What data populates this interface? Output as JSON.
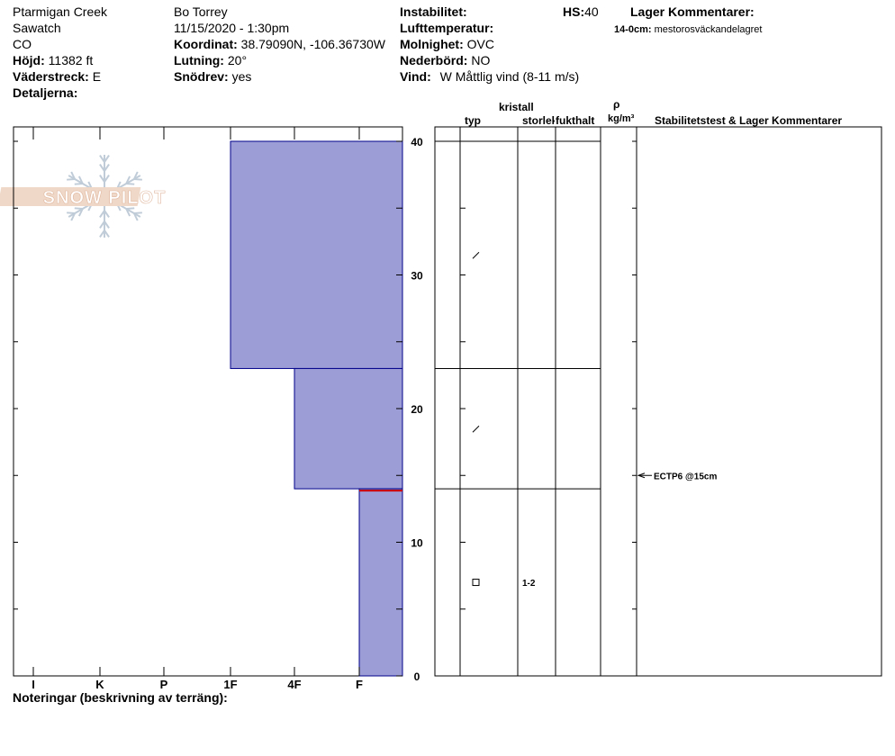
{
  "header": {
    "location": "Ptarmigan Creek",
    "range": "Sawatch",
    "state": "CO",
    "elevation_label": "Höjd:",
    "elevation_value": "11382 ft",
    "aspect_label": "Väderstreck:",
    "aspect_value": "E",
    "details_label": "Detaljerna:",
    "observer": "Bo Torrey",
    "datetime": "11/15/2020 - 1:30pm",
    "coord_label": "Koordinat:",
    "coord_value": "38.79090N, -106.36730W",
    "slope_label": "Lutning:",
    "slope_value": "20°",
    "drift_label": "Snödrev:",
    "drift_value": "yes",
    "instability_label": "Instabilitet:",
    "airtemp_label": "Lufttemperatur:",
    "cloud_label": "Molnighet:",
    "cloud_value": "OVC",
    "precip_label": "Nederbörd:",
    "precip_value": "NO",
    "wind_label": "Vind:",
    "wind_value": "W Måttlig vind (8-11 m/s)",
    "hs_label": "HS:",
    "hs_value": "40",
    "layer_comments_label": "Lager Kommentarer:",
    "layer_comment_depth": "14-0cm:",
    "layer_comment_text": "mestorosväckandelagret"
  },
  "columns": {
    "crystal": "kristall",
    "type": "typ",
    "size": "storlek",
    "moisture": "fukthalt",
    "rho": "ρ",
    "density_unit": "kg/m³",
    "stability": "Stabilitetstest & Lager Kommentarer"
  },
  "footer": {
    "notes_label": "Noteringar (beskrivning av terräng):"
  },
  "logo": {
    "text": "SNOW PILOT"
  },
  "colors": {
    "layer_fill": "#9c9cd6",
    "layer_stroke": "#00008b",
    "weak_layer": "#cc0000",
    "logo_band": "#f0d8c8",
    "logo_flake": "#c0ccd8"
  },
  "chart_data": {
    "type": "bar",
    "orientation": "horizontal-step",
    "hardness_scale": [
      "I",
      "K",
      "P",
      "1F",
      "4F",
      "F"
    ],
    "ylim": [
      0,
      40
    ],
    "y_ticks": [
      0,
      10,
      20,
      30,
      40
    ],
    "layers": [
      {
        "top": 40,
        "bottom": 23,
        "hardness": "1F",
        "grain": "decomposing",
        "grain_size": ""
      },
      {
        "top": 23,
        "bottom": 14,
        "hardness": "4F",
        "grain": "decomposing",
        "grain_size": ""
      },
      {
        "top": 14,
        "bottom": 0,
        "hardness": "F",
        "grain": "faceted",
        "grain_size": "1-2"
      }
    ],
    "weak_layer_depth": 14,
    "stability_tests": [
      {
        "depth": 15,
        "label": "ECTP6 @15cm"
      }
    ]
  }
}
